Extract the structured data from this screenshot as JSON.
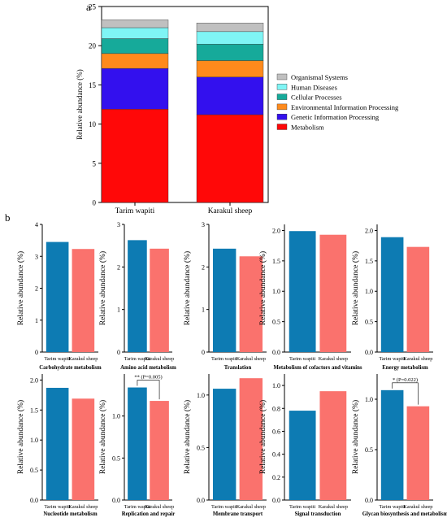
{
  "panel_a_letter": "a",
  "panel_b_letter": "b",
  "colors": {
    "organismal": "#c0c0c0",
    "human": "#7ff5f5",
    "cellular": "#16aa9a",
    "environmental": "#ff8a1c",
    "genetic": "#3310ee",
    "metabolism": "#ff0808",
    "tarim": "#0d7bb3",
    "karakul": "#fa726d"
  },
  "chart_data": [
    {
      "type": "bar",
      "stacked": true,
      "ylabel": "Relative abundance (%)",
      "xlabel": "",
      "ylim": [
        0,
        25
      ],
      "yticks": [
        "0",
        "5",
        "10",
        "15",
        "20",
        "25"
      ],
      "categories": [
        "Tarim wapiti",
        "Karakul sheep"
      ],
      "legend_position": "right",
      "series": [
        {
          "name": "Metabolism",
          "values": [
            11.9,
            11.2
          ]
        },
        {
          "name": "Genetic Information Processing",
          "values": [
            5.2,
            4.8
          ]
        },
        {
          "name": "Environmental Information Processing",
          "values": [
            1.9,
            2.1
          ]
        },
        {
          "name": "Cellular Processes",
          "values": [
            1.9,
            2.1
          ]
        },
        {
          "name": "Human Diseases",
          "values": [
            1.4,
            1.6
          ]
        },
        {
          "name": "Organismal Systems",
          "values": [
            1.0,
            1.1
          ]
        }
      ],
      "legend_order": [
        "Organismal Systems",
        "Human Diseases",
        "Cellular Processes",
        "Environmental Information Processing",
        "Genetic Information Processing",
        "Metabolism"
      ]
    },
    {
      "type": "bar",
      "title": "Carbohydrate metabolism",
      "ylabel": "Relative abundance (%)",
      "categories": [
        "Tarim wapiti",
        "Karakul sheep"
      ],
      "values": [
        3.45,
        3.23
      ],
      "ylim": [
        0,
        4
      ],
      "yticks": [
        "0",
        "1",
        "2",
        "3",
        "4"
      ],
      "annotation": ""
    },
    {
      "type": "bar",
      "title": "Amino acid metabolism",
      "ylabel": "Relative abundance (%)",
      "categories": [
        "Tarim wapiti",
        "Karakul sheep"
      ],
      "values": [
        2.63,
        2.43
      ],
      "ylim": [
        0,
        3
      ],
      "yticks": [
        "0",
        "1",
        "2",
        "3"
      ],
      "annotation": ""
    },
    {
      "type": "bar",
      "title": "Translation",
      "ylabel": "Relative abundance (%)",
      "categories": [
        "Tarim wapiti",
        "Karakul sheep"
      ],
      "values": [
        2.43,
        2.25
      ],
      "ylim": [
        0,
        3
      ],
      "yticks": [
        "0",
        "1",
        "2",
        "3"
      ],
      "annotation": ""
    },
    {
      "type": "bar",
      "title": "Metabolism of cofactors and vitamins",
      "ylabel": "Relative abundance (%)",
      "categories": [
        "Tarim wapiti",
        "Karakul sheep"
      ],
      "values": [
        1.99,
        1.93
      ],
      "ylim": [
        0,
        2.1
      ],
      "yticks": [
        "0.0",
        "0.5",
        "1.0",
        "1.5",
        "2.0"
      ],
      "annotation": ""
    },
    {
      "type": "bar",
      "title": "Energy metabolism",
      "ylabel": "Relative abundance (%)",
      "categories": [
        "Tarim wapiti",
        "Karakul sheep"
      ],
      "values": [
        1.89,
        1.73
      ],
      "ylim": [
        0,
        2.1
      ],
      "yticks": [
        "0.0",
        "0.5",
        "1.0",
        "1.5",
        "2.0"
      ],
      "annotation": ""
    },
    {
      "type": "bar",
      "title": "Nucleotide metabolism",
      "ylabel": "Relative abundance (%)",
      "categories": [
        "Tarim wapiti",
        "Karakul sheep"
      ],
      "values": [
        1.87,
        1.69
      ],
      "ylim": [
        0,
        2.1
      ],
      "yticks": [
        "0.0",
        "0.5",
        "1.0",
        "1.5",
        "2.0"
      ],
      "annotation": ""
    },
    {
      "type": "bar",
      "title": "Replication and repair",
      "ylabel": "Relative abundance (%)",
      "categories": [
        "Tarim wapiti",
        "Karakul sheep"
      ],
      "values": [
        1.34,
        1.18
      ],
      "ylim": [
        0,
        1.5
      ],
      "yticks": [
        "0.0",
        "0.5",
        "1.0"
      ],
      "annotation": "** (P=0.005)"
    },
    {
      "type": "bar",
      "title": "Membrane transport",
      "ylabel": "Relative abundance (%)",
      "categories": [
        "Tarim wapiti",
        "Karakul sheep"
      ],
      "values": [
        1.06,
        1.16
      ],
      "ylim": [
        0,
        1.2
      ],
      "yticks": [
        "0.0",
        "0.5",
        "1.0"
      ],
      "annotation": ""
    },
    {
      "type": "bar",
      "title": "Signal transduction",
      "ylabel": "Relative abundance (%)",
      "categories": [
        "Tarim wapiti",
        "Karakul sheep"
      ],
      "values": [
        0.78,
        0.95
      ],
      "ylim": [
        0,
        1.1
      ],
      "yticks": [
        "0.0",
        "0.2",
        "0.4",
        "0.6",
        "0.8",
        "1.0"
      ],
      "annotation": ""
    },
    {
      "type": "bar",
      "title": "Glycan biosynthesis and metabolism",
      "ylabel": "Relative abundance (%)",
      "categories": [
        "Tarim wapiti",
        "Karakul sheep"
      ],
      "values": [
        1.09,
        0.93
      ],
      "ylim": [
        0,
        1.25
      ],
      "yticks": [
        "0.0",
        "0.5",
        "1.0"
      ],
      "annotation": "* (P=0.022)"
    }
  ]
}
